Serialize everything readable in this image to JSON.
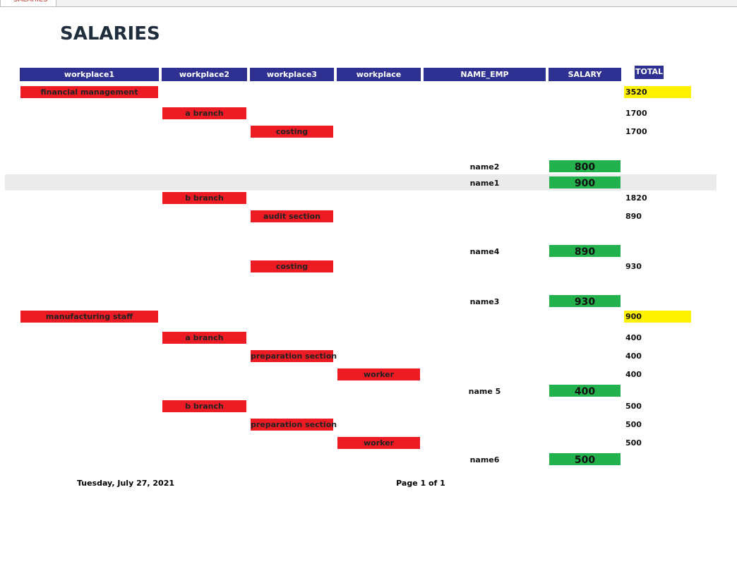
{
  "tab": "SALARIES",
  "title": "SALARIES",
  "headers": {
    "workplace1": "workplace1",
    "workplace2": "workplace2",
    "workplace3": "workplace3",
    "workplace": "workplace",
    "name_emp": "NAME_EMP",
    "salary": "SALARY",
    "total": "TOTAL"
  },
  "rows": [
    {
      "workplace1": "financial management",
      "total": 3520
    },
    {
      "workplace2": "a branch",
      "total": 1700
    },
    {
      "workplace3": "costing",
      "total": 1700
    },
    {
      "name_emp": "name2",
      "salary": 800
    },
    {
      "name_emp": "name1",
      "salary": 900
    },
    {
      "workplace2": "b branch",
      "total": 1820
    },
    {
      "workplace3": "audit section",
      "total": 890
    },
    {
      "name_emp": "name4",
      "salary": 890
    },
    {
      "workplace3": "costing",
      "total": 930
    },
    {
      "name_emp": "name3",
      "salary": 930
    },
    {
      "workplace1": "manufacturing staff",
      "total": 900
    },
    {
      "workplace2": "a branch",
      "total": 400
    },
    {
      "workplace3": "preparation section",
      "total": 400
    },
    {
      "workplace": "worker",
      "total": 400
    },
    {
      "name_emp": "name 5",
      "salary": 400
    },
    {
      "workplace2": "b branch",
      "total": 500
    },
    {
      "workplace3": "preparation section",
      "total": 500
    },
    {
      "workplace": "worker",
      "total": 500
    },
    {
      "name_emp": "name6",
      "salary": 500
    }
  ],
  "footer": {
    "date": "Tuesday, July 27, 2021",
    "page": "Page 1 of 1"
  }
}
